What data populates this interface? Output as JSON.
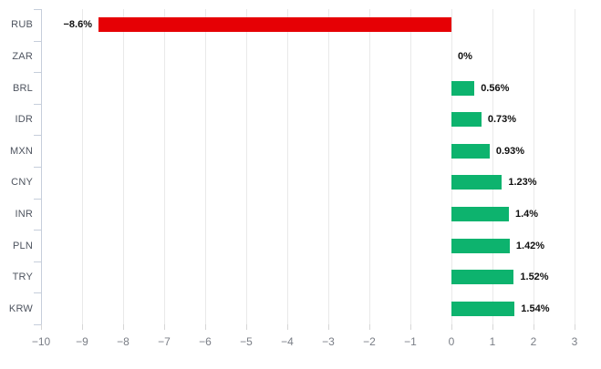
{
  "chart_data": {
    "type": "bar",
    "orientation": "horizontal",
    "title": "",
    "xlabel": "",
    "ylabel": "",
    "categories": [
      "RUB",
      "ZAR",
      "BRL",
      "IDR",
      "MXN",
      "CNY",
      "INR",
      "PLN",
      "TRY",
      "KRW"
    ],
    "values": [
      -8.6,
      0,
      0.56,
      0.73,
      0.93,
      1.23,
      1.4,
      1.42,
      1.52,
      1.54
    ],
    "value_labels": [
      "−8.6%",
      "0%",
      "0.56%",
      "0.73%",
      "0.93%",
      "1.23%",
      "1.4%",
      "1.42%",
      "1.52%",
      "1.54%"
    ],
    "xlim": [
      -10,
      3
    ],
    "xticks": [
      -10,
      -9,
      -8,
      -7,
      -6,
      -5,
      -4,
      -3,
      -2,
      -1,
      0,
      1,
      2,
      3
    ],
    "xtick_labels": [
      "−10",
      "−9",
      "−8",
      "−7",
      "−6",
      "−5",
      "−4",
      "−3",
      "−2",
      "−1",
      "0",
      "1",
      "2",
      "3"
    ],
    "grid": true,
    "legend": false,
    "colors": {
      "negative_bar": "#e60005",
      "positive_bar": "#0db36e",
      "axis_line": "#c6cedb",
      "gridline": "#e9e9e9",
      "tick_label": "#7a7e86",
      "category_label": "#4e545f",
      "value_label": "#101010",
      "background": "#ffffff"
    }
  }
}
